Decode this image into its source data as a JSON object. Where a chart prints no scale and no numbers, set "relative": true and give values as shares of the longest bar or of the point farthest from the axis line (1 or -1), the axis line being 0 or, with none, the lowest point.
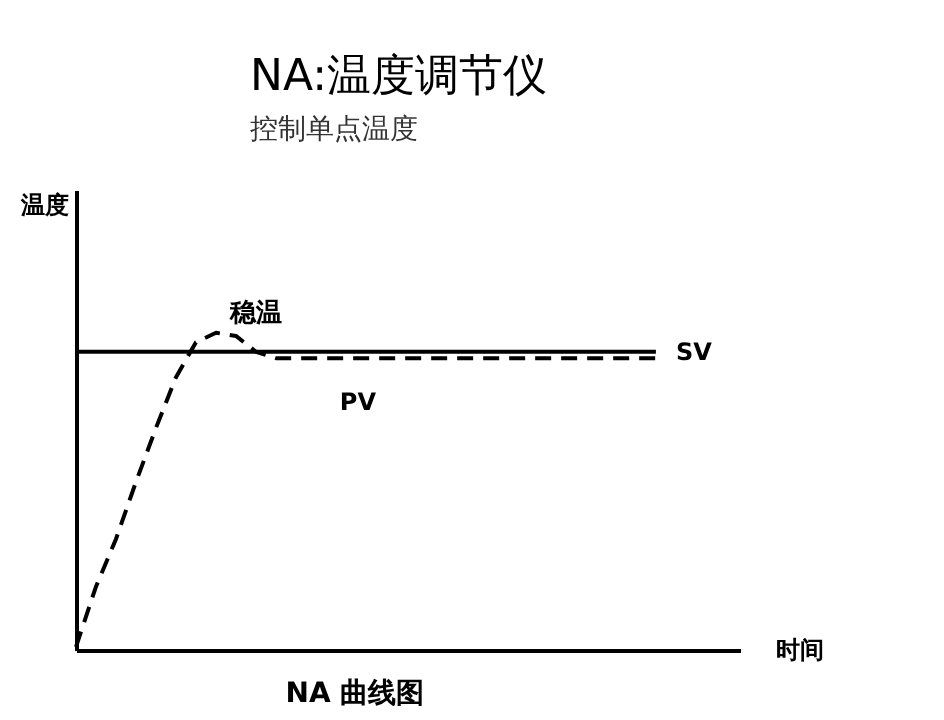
{
  "chart_data": {
    "type": "line",
    "title": "NA:温度调节仪",
    "subtitle": "控制单点温度",
    "xlabel": "时间",
    "ylabel": "温度",
    "relative": true,
    "grid": false,
    "marker": "none",
    "categories": [
      null,
      null,
      null,
      null,
      null,
      null,
      null,
      null,
      null,
      null,
      null,
      null,
      null,
      null,
      null,
      null,
      null,
      null,
      null,
      null,
      null,
      null,
      null,
      null,
      null,
      null,
      null,
      null,
      null,
      null
    ],
    "series": [
      {
        "name": "SV",
        "color": "#000000",
        "line_style": "solid",
        "values": [
          0.94,
          0.94,
          0.94,
          0.94,
          0.94,
          0.94,
          0.94,
          0.94,
          0.94,
          0.94,
          0.94,
          0.94,
          0.94,
          0.94,
          0.94,
          0.94,
          0.94,
          0.94,
          0.94,
          0.94,
          0.94,
          0.94,
          0.94,
          0.94,
          0.94,
          0.94,
          0.94,
          0.94,
          0.94,
          0.94
        ]
      },
      {
        "name": "PV",
        "color": "#000000",
        "line_style": "dashed",
        "values": [
          0.01,
          0.2,
          0.35,
          0.53,
          0.7,
          0.86,
          0.97,
          1.0,
          0.99,
          0.94,
          0.92,
          0.92,
          0.92,
          0.92,
          0.92,
          0.92,
          0.92,
          0.92,
          0.92,
          0.92,
          0.92,
          0.92,
          0.92,
          0.92,
          0.92,
          0.92,
          0.92,
          0.92,
          0.92,
          0.92
        ]
      }
    ],
    "annotations": [
      "稳温",
      "NA 曲线图"
    ]
  }
}
